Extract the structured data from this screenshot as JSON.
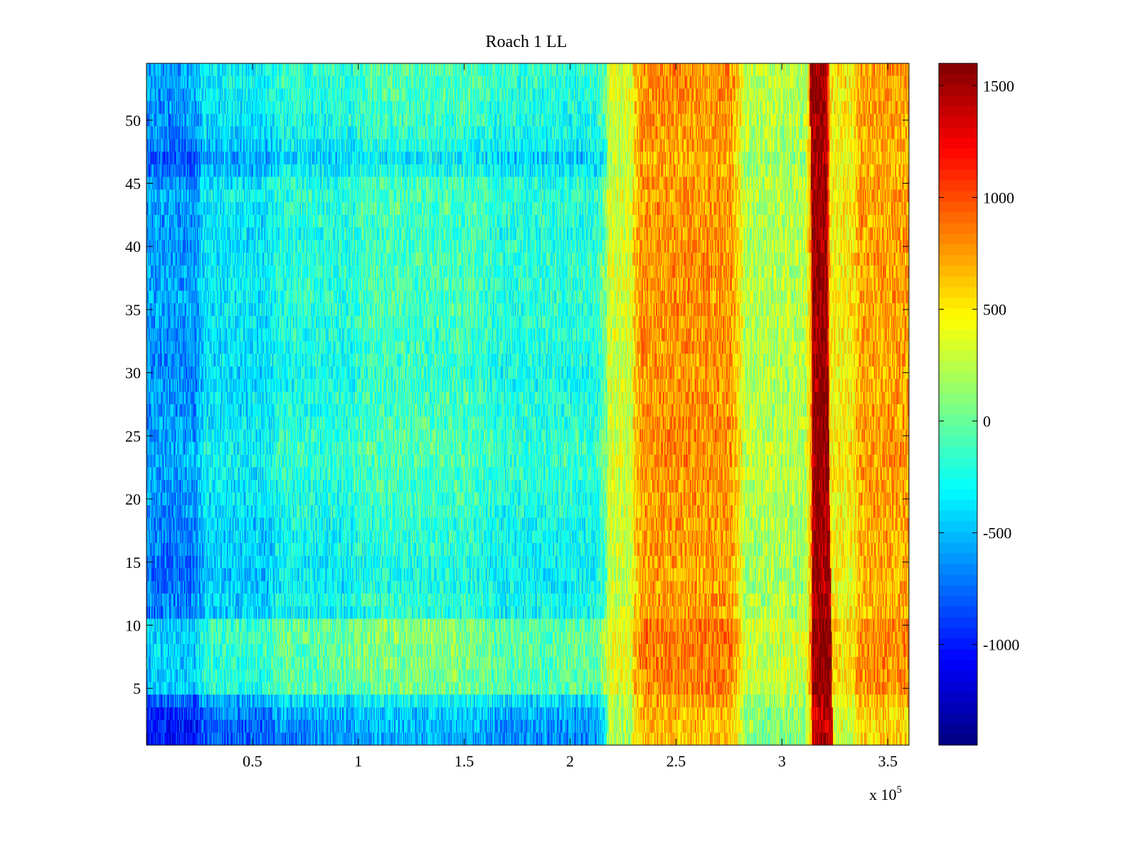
{
  "chart_data": {
    "type": "heatmap",
    "title": "Roach 1 LL",
    "colormap": "jet",
    "x_multiplier_label": {
      "base": "x 10",
      "exponent": "5"
    },
    "xlim": [
      0,
      3.6
    ],
    "ylim": [
      0.5,
      54.5
    ],
    "clim": [
      -1450,
      1600
    ],
    "x_ticks": [
      {
        "value": 0.5,
        "label": "0.5"
      },
      {
        "value": 1,
        "label": "1"
      },
      {
        "value": 1.5,
        "label": "1.5"
      },
      {
        "value": 2,
        "label": "2"
      },
      {
        "value": 2.5,
        "label": "2.5"
      },
      {
        "value": 3,
        "label": "3"
      },
      {
        "value": 3.5,
        "label": "3.5"
      }
    ],
    "y_ticks": [
      {
        "value": 5,
        "label": "5"
      },
      {
        "value": 10,
        "label": "10"
      },
      {
        "value": 15,
        "label": "15"
      },
      {
        "value": 20,
        "label": "20"
      },
      {
        "value": 25,
        "label": "25"
      },
      {
        "value": 30,
        "label": "30"
      },
      {
        "value": 35,
        "label": "35"
      },
      {
        "value": 40,
        "label": "40"
      },
      {
        "value": 45,
        "label": "45"
      },
      {
        "value": 50,
        "label": "50"
      }
    ],
    "colorbar_ticks": [
      {
        "value": 1500,
        "label": "1500"
      },
      {
        "value": 1000,
        "label": "1000"
      },
      {
        "value": 500,
        "label": "500"
      },
      {
        "value": 0,
        "label": "0"
      },
      {
        "value": -500,
        "label": "-500"
      },
      {
        "value": -1000,
        "label": "-1000"
      }
    ],
    "rows": 54,
    "x_column_edges": [
      0,
      0.25,
      0.6,
      1.0,
      1.6,
      2.17,
      2.3,
      2.8,
      3.14,
      3.22,
      3.35,
      3.6
    ],
    "column_band_means": [
      -550,
      -300,
      -150,
      -50,
      -150,
      350,
      800,
      250,
      1500,
      500,
      750
    ],
    "row_offsets": [
      -500,
      -450,
      -400,
      -250,
      80,
      100,
      120,
      130,
      140,
      130,
      -150,
      -120,
      -180,
      -190,
      -160,
      -150,
      -130,
      -120,
      -100,
      -80,
      -60,
      -40,
      -20,
      0,
      -30,
      -50,
      -70,
      -60,
      -90,
      -100,
      -90,
      -80,
      -70,
      -60,
      -50,
      -40,
      -40,
      -30,
      -50,
      -60,
      -80,
      -60,
      -50,
      -40,
      -60,
      -200,
      -280,
      -180,
      -120,
      -90,
      -60,
      -40,
      -30,
      -20
    ],
    "noise_amplitude": 260
  }
}
